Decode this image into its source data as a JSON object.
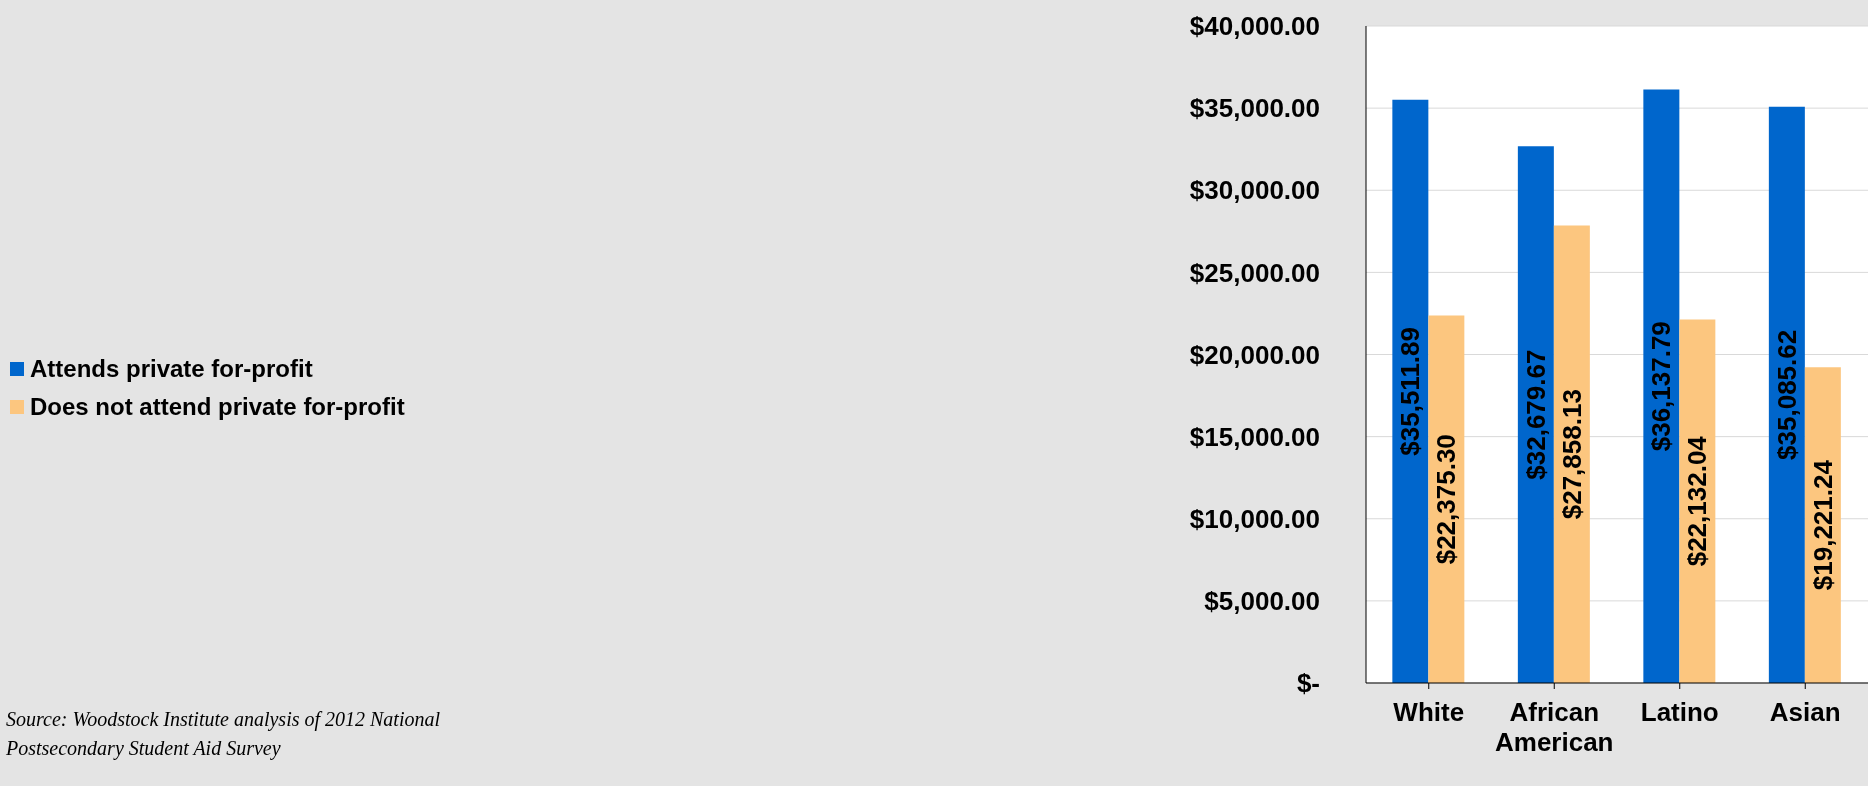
{
  "chart_data": {
    "type": "bar",
    "categories": [
      "White",
      "African American",
      "Latino",
      "Asian"
    ],
    "series": [
      {
        "name": "Attends private for-profit",
        "color": "#0066cc",
        "values": [
          35511.89,
          32679.67,
          36137.79,
          35085.62
        ],
        "value_labels": [
          "$35,511.89",
          "$32,679.67",
          "$36,137.79",
          "$35,085.62"
        ]
      },
      {
        "name": "Does not attend private for-profit",
        "color": "#fcc67f",
        "values": [
          22375.3,
          27858.13,
          22132.04,
          19221.24
        ],
        "value_labels": [
          "$22,375.30",
          "$27,858.13",
          "$22,132.04",
          "$19,221.24"
        ]
      }
    ],
    "ylim": [
      0,
      40000
    ],
    "yticks": [
      {
        "value": 0,
        "label": "$-"
      },
      {
        "value": 5000,
        "label": "$5,000.00"
      },
      {
        "value": 10000,
        "label": "$10,000.00"
      },
      {
        "value": 15000,
        "label": "$15,000.00"
      },
      {
        "value": 20000,
        "label": "$20,000.00"
      },
      {
        "value": 25000,
        "label": "$25,000.00"
      },
      {
        "value": 30000,
        "label": "$30,000.00"
      },
      {
        "value": 35000,
        "label": "$35,000.00"
      },
      {
        "value": 40000,
        "label": "$40,000.00"
      }
    ],
    "grid": "y",
    "legend": "left",
    "annotations": [
      "Source:  Woodstock Institute analysis of 2012 National Postsecondary Student Aid Survey"
    ]
  }
}
